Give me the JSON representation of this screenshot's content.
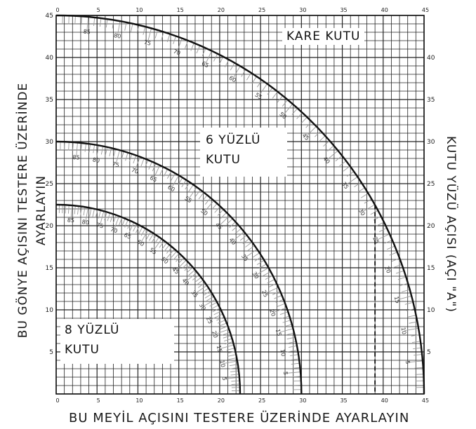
{
  "chart_data": {
    "type": "nomogram",
    "x_top_ticks": [
      "0",
      "5",
      "10",
      "15",
      "20",
      "25",
      "30",
      "35",
      "40",
      "45"
    ],
    "x_bottom_ticks": [
      "0",
      "5",
      "10",
      "15",
      "20",
      "25",
      "30",
      "35",
      "40",
      "45"
    ],
    "y_left_ticks": [
      "5",
      "10",
      "15",
      "20",
      "25",
      "30",
      "35",
      "40",
      "45"
    ],
    "y_right_ticks": [
      "5",
      "10",
      "15",
      "20",
      "25",
      "30",
      "35",
      "40"
    ],
    "xlabel": "BU MEYİL AÇISINI TESTERE ÜZERİNDE AYARLAYIN",
    "ylabel_left_line1": "BU GÖNYE AÇISINI TESTERE ÜZERİNDE",
    "ylabel_left_line2": "AYARLAYIN",
    "ylabel_right": "KUTU YÜZÜ AÇISI (AÇI \"A\")",
    "xlim": [
      0,
      45
    ],
    "ylim": [
      0,
      45
    ],
    "grid": true,
    "curves": [
      {
        "name": "KARE KUTU",
        "radius": 45,
        "arc_labels": [
          "85",
          "80",
          "75",
          "70",
          "65",
          "60",
          "55",
          "50",
          "45",
          "40",
          "35",
          "30",
          "25",
          "20",
          "15",
          "10",
          "5"
        ]
      },
      {
        "name": "6 YÜZLÜ KUTU",
        "radius": 30,
        "arc_labels": [
          "85",
          "80",
          "75",
          "70",
          "65",
          "60",
          "55",
          "50",
          "45",
          "40",
          "35",
          "30",
          "25",
          "20",
          "15",
          "10",
          "5"
        ]
      },
      {
        "name": "8 YÜZLÜ KUTU",
        "radius": 22.5,
        "arc_labels": [
          "85",
          "80",
          "75",
          "70",
          "65",
          "60",
          "55",
          "50",
          "45",
          "40",
          "35",
          "30",
          "25",
          "20",
          "15",
          "10",
          "5"
        ]
      }
    ],
    "dashed_line_x": 39
  },
  "labels": {
    "square_box": "KARE KUTU",
    "hex_box_line1": "6 YÜZLÜ",
    "hex_box_line2": "KUTU",
    "oct_box_line1": "8 YÜZLÜ",
    "oct_box_line2": "KUTU"
  }
}
